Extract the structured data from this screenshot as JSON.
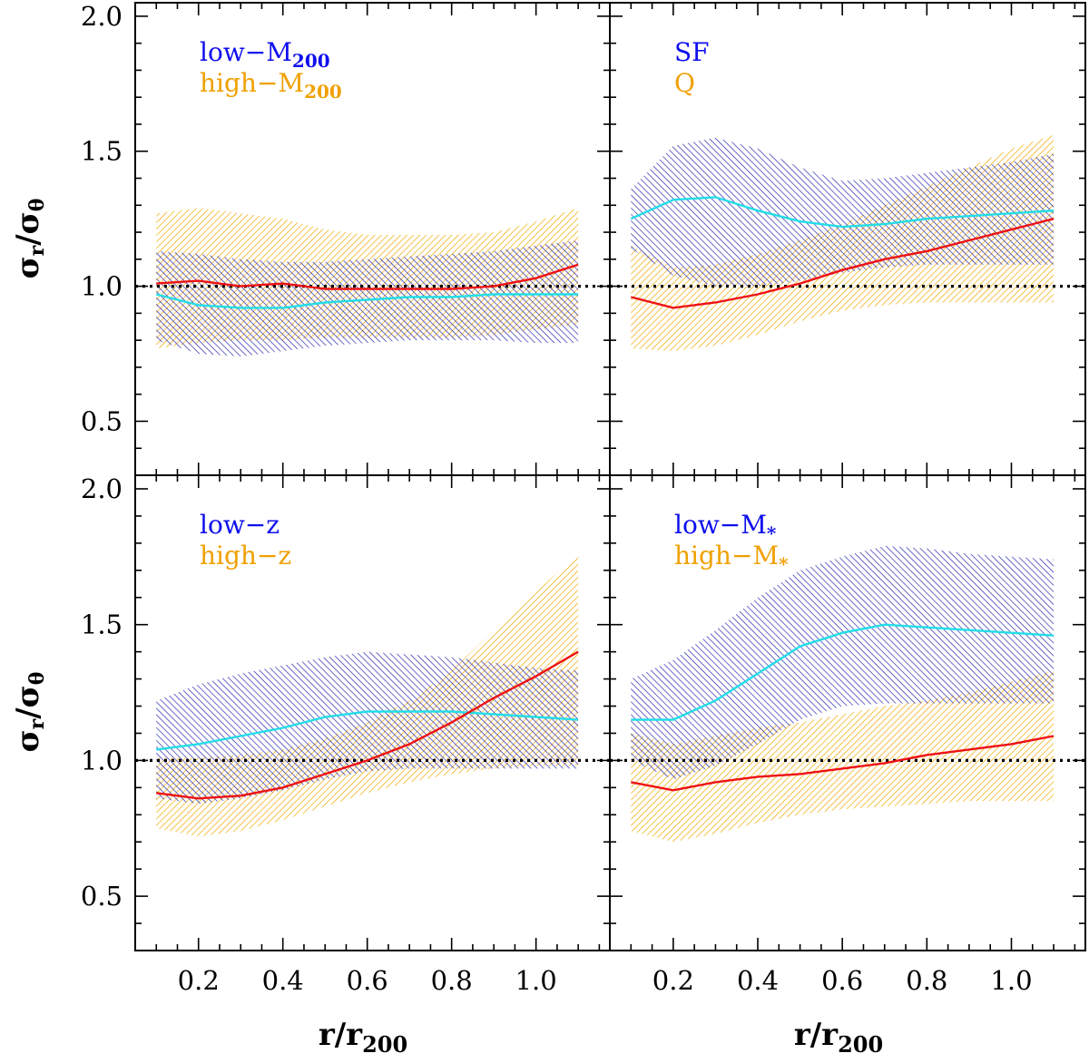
{
  "figure": {
    "xlabel_main": "r/r",
    "xlabel_sub": "200",
    "ylabel_sigma": "σ",
    "ylabel_r": "r",
    "ylabel_slash": "/",
    "ylabel_theta": "θ",
    "colors": {
      "band_a": "#2a2ab0",
      "band_b": "#f0a800",
      "line_a": "#22dde8",
      "line_b": "#ee1111",
      "legend_a": "#1010ee",
      "legend_b": "#f0a000",
      "reference": "#000000"
    }
  },
  "chart_data": [
    {
      "type": "area",
      "panel": "top-left",
      "xlim": [
        0.05,
        1.175
      ],
      "ylim": [
        0.3,
        2.05
      ],
      "xticks": [
        "0.2",
        "0.4",
        "0.6",
        "0.8",
        "1.0"
      ],
      "yticks": [
        "0.5",
        "1.0",
        "1.5",
        "2.0"
      ],
      "reference_line": 1.0,
      "legend": {
        "a": {
          "prefix": "low−M",
          "sub": "200"
        },
        "b": {
          "prefix": "high−M",
          "sub": "200"
        }
      },
      "series_a": {
        "name": "low-M200",
        "x": [
          0.1,
          0.2,
          0.3,
          0.4,
          0.5,
          0.6,
          0.7,
          0.8,
          0.9,
          1.0,
          1.1
        ],
        "y": [
          0.97,
          0.93,
          0.92,
          0.92,
          0.94,
          0.95,
          0.96,
          0.96,
          0.97,
          0.97,
          0.97
        ],
        "lower": [
          0.8,
          0.75,
          0.74,
          0.76,
          0.78,
          0.79,
          0.8,
          0.8,
          0.8,
          0.79,
          0.79
        ],
        "upper": [
          1.13,
          1.12,
          1.1,
          1.09,
          1.09,
          1.1,
          1.11,
          1.12,
          1.13,
          1.15,
          1.17
        ]
      },
      "series_b": {
        "name": "high-M200",
        "x": [
          0.1,
          0.2,
          0.3,
          0.4,
          0.5,
          0.6,
          0.7,
          0.8,
          0.9,
          1.0,
          1.1
        ],
        "y": [
          1.01,
          1.02,
          1.0,
          1.01,
          0.99,
          0.99,
          0.99,
          0.99,
          1.0,
          1.03,
          1.08
        ],
        "lower": [
          0.77,
          0.79,
          0.8,
          0.8,
          0.81,
          0.81,
          0.81,
          0.81,
          0.82,
          0.84,
          0.86
        ],
        "upper": [
          1.27,
          1.29,
          1.27,
          1.25,
          1.21,
          1.19,
          1.19,
          1.19,
          1.2,
          1.24,
          1.29
        ]
      }
    },
    {
      "type": "area",
      "panel": "top-right",
      "xlim": [
        0.05,
        1.175
      ],
      "ylim": [
        0.3,
        2.05
      ],
      "xticks": [
        "0.2",
        "0.4",
        "0.6",
        "0.8",
        "1.0"
      ],
      "yticks": [
        "0.5",
        "1.0",
        "1.5",
        "2.0"
      ],
      "reference_line": 1.0,
      "legend": {
        "a": {
          "prefix": "SF",
          "sub": ""
        },
        "b": {
          "prefix": "Q",
          "sub": ""
        }
      },
      "series_a": {
        "name": "SF",
        "x": [
          0.1,
          0.2,
          0.3,
          0.4,
          0.5,
          0.6,
          0.7,
          0.8,
          0.9,
          1.0,
          1.1
        ],
        "y": [
          1.25,
          1.32,
          1.33,
          1.28,
          1.24,
          1.22,
          1.23,
          1.25,
          1.26,
          1.27,
          1.28
        ],
        "lower": [
          1.14,
          1.04,
          1.0,
          1.0,
          1.02,
          1.05,
          1.07,
          1.08,
          1.08,
          1.08,
          1.08
        ],
        "upper": [
          1.36,
          1.52,
          1.55,
          1.51,
          1.44,
          1.39,
          1.4,
          1.42,
          1.44,
          1.46,
          1.49
        ]
      },
      "series_b": {
        "name": "Q",
        "x": [
          0.1,
          0.2,
          0.3,
          0.4,
          0.5,
          0.6,
          0.7,
          0.8,
          0.9,
          1.0,
          1.1
        ],
        "y": [
          0.96,
          0.92,
          0.94,
          0.97,
          1.01,
          1.06,
          1.1,
          1.13,
          1.17,
          1.21,
          1.25
        ],
        "lower": [
          0.77,
          0.76,
          0.78,
          0.82,
          0.87,
          0.91,
          0.93,
          0.94,
          0.94,
          0.94,
          0.94
        ],
        "upper": [
          1.15,
          1.07,
          1.08,
          1.12,
          1.17,
          1.23,
          1.3,
          1.37,
          1.44,
          1.51,
          1.56
        ]
      }
    },
    {
      "type": "area",
      "panel": "bottom-left",
      "xlim": [
        0.05,
        1.175
      ],
      "ylim": [
        0.3,
        2.05
      ],
      "xticks": [
        "0.2",
        "0.4",
        "0.6",
        "0.8",
        "1.0"
      ],
      "yticks": [
        "0.5",
        "1.0",
        "1.5",
        "2.0"
      ],
      "reference_line": 1.0,
      "legend": {
        "a": {
          "prefix": "low−z",
          "sub": ""
        },
        "b": {
          "prefix": "high−z",
          "sub": ""
        }
      },
      "series_a": {
        "name": "low-z",
        "x": [
          0.1,
          0.2,
          0.3,
          0.4,
          0.5,
          0.6,
          0.7,
          0.8,
          0.9,
          1.0,
          1.1
        ],
        "y": [
          1.04,
          1.06,
          1.09,
          1.12,
          1.16,
          1.18,
          1.18,
          1.18,
          1.17,
          1.16,
          1.15
        ],
        "lower": [
          0.86,
          0.84,
          0.86,
          0.89,
          0.93,
          0.96,
          0.97,
          0.97,
          0.97,
          0.97,
          0.97
        ],
        "upper": [
          1.22,
          1.28,
          1.32,
          1.35,
          1.38,
          1.4,
          1.39,
          1.38,
          1.36,
          1.34,
          1.33
        ]
      },
      "series_b": {
        "name": "high-z",
        "x": [
          0.1,
          0.2,
          0.3,
          0.4,
          0.5,
          0.6,
          0.7,
          0.8,
          0.9,
          1.0,
          1.1
        ],
        "y": [
          0.88,
          0.86,
          0.87,
          0.9,
          0.95,
          1.0,
          1.06,
          1.14,
          1.23,
          1.31,
          1.4
        ],
        "lower": [
          0.75,
          0.72,
          0.74,
          0.78,
          0.83,
          0.88,
          0.92,
          0.95,
          0.97,
          0.98,
          0.98
        ],
        "upper": [
          1.01,
          1.01,
          1.02,
          1.04,
          1.08,
          1.14,
          1.22,
          1.33,
          1.48,
          1.62,
          1.76
        ]
      }
    },
    {
      "type": "area",
      "panel": "bottom-right",
      "xlim": [
        0.05,
        1.175
      ],
      "ylim": [
        0.3,
        2.05
      ],
      "xticks": [
        "0.2",
        "0.4",
        "0.6",
        "0.8",
        "1.0"
      ],
      "yticks": [
        "0.5",
        "1.0",
        "1.5",
        "2.0"
      ],
      "reference_line": 1.0,
      "legend": {
        "a": {
          "prefix": "low−M",
          "sub": "*"
        },
        "b": {
          "prefix": "high−M",
          "sub": "*"
        }
      },
      "series_a": {
        "name": "low-M*",
        "x": [
          0.1,
          0.2,
          0.3,
          0.4,
          0.5,
          0.6,
          0.7,
          0.8,
          0.9,
          1.0,
          1.1
        ],
        "y": [
          1.15,
          1.15,
          1.22,
          1.32,
          1.42,
          1.47,
          1.5,
          1.49,
          1.48,
          1.47,
          1.46
        ],
        "lower": [
          1.0,
          0.93,
          0.98,
          1.06,
          1.15,
          1.2,
          1.21,
          1.21,
          1.21,
          1.21,
          1.21
        ],
        "upper": [
          1.3,
          1.37,
          1.48,
          1.6,
          1.7,
          1.75,
          1.79,
          1.78,
          1.76,
          1.75,
          1.74
        ]
      },
      "series_b": {
        "name": "high-M*",
        "x": [
          0.1,
          0.2,
          0.3,
          0.4,
          0.5,
          0.6,
          0.7,
          0.8,
          0.9,
          1.0,
          1.1
        ],
        "y": [
          0.92,
          0.89,
          0.92,
          0.94,
          0.95,
          0.97,
          0.99,
          1.02,
          1.04,
          1.06,
          1.09
        ],
        "lower": [
          0.74,
          0.7,
          0.73,
          0.77,
          0.8,
          0.82,
          0.83,
          0.84,
          0.85,
          0.85,
          0.85
        ],
        "upper": [
          1.1,
          1.06,
          1.09,
          1.12,
          1.14,
          1.17,
          1.2,
          1.22,
          1.25,
          1.29,
          1.33
        ]
      }
    }
  ]
}
